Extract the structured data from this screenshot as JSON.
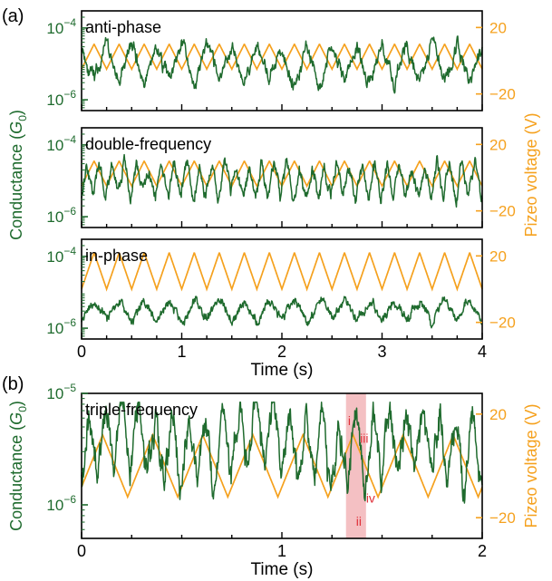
{
  "figure": {
    "panel_labels": [
      "(a)",
      "(b)"
    ],
    "colors": {
      "conductance": "#1f6b2e",
      "voltage": "#f5a11e",
      "highlight": "#f2b5b8",
      "annotation": "#e0303a",
      "axis": "#000000"
    }
  },
  "chart_data": [
    {
      "type": "line",
      "panel": "(a)",
      "title": "anti-phase",
      "xlim": [
        0,
        4
      ],
      "left_axis": {
        "ylabel": "Conductance (G0)",
        "scale": "log",
        "ylim": [
          5e-07,
          0.0003
        ],
        "ticks": [
          "10^-6",
          "10^-4"
        ]
      },
      "right_axis": {
        "ylabel": "Pizeo voltage (V)",
        "ylim": [
          -30,
          30
        ],
        "ticks": [
          "-20",
          "20"
        ]
      },
      "voltage_wave": {
        "shape": "triangle",
        "period_s": 0.25,
        "vmin": -5,
        "vmax": 10,
        "phase": 0
      },
      "conductance_wave": {
        "pattern": "anti-phase",
        "log_base": -5.0,
        "log_amplitude": 0.55,
        "seed": 11
      }
    },
    {
      "type": "line",
      "title": "double-frequency",
      "xlim": [
        0,
        4
      ],
      "left_axis": {
        "ylabel": "",
        "scale": "log",
        "ylim": [
          5e-07,
          0.0003
        ],
        "ticks": [
          "10^-6",
          "10^-4"
        ]
      },
      "right_axis": {
        "ylabel": "",
        "ylim": [
          -30,
          30
        ],
        "ticks": [
          "-20",
          "20"
        ]
      },
      "voltage_wave": {
        "shape": "triangle",
        "period_s": 0.25,
        "vmin": -5,
        "vmax": 10,
        "phase": 0
      },
      "conductance_wave": {
        "pattern": "double-frequency",
        "log_base": -5.0,
        "log_amplitude": 0.5,
        "seed": 23
      }
    },
    {
      "type": "line",
      "title": "in-phase",
      "xlabel": "Time (s)",
      "xlim": [
        0,
        4
      ],
      "xticks": [
        "0",
        "1",
        "2",
        "3",
        "4"
      ],
      "left_axis": {
        "ylabel": "",
        "scale": "log",
        "ylim": [
          5e-07,
          0.0003
        ],
        "ticks": [
          "10^-6",
          "10^-4"
        ]
      },
      "right_axis": {
        "ylabel": "",
        "ylim": [
          -30,
          30
        ],
        "ticks": [
          "-20",
          "20"
        ]
      },
      "voltage_wave": {
        "shape": "triangle",
        "period_s": 0.25,
        "vmin": 0,
        "vmax": 22,
        "phase": 0
      },
      "conductance_wave": {
        "pattern": "in-phase",
        "log_base": -5.5,
        "log_amplitude": 0.3,
        "seed": 37
      }
    },
    {
      "type": "line",
      "panel": "(b)",
      "title": "triple-frequency",
      "xlabel": "Time (s)",
      "xlim": [
        0,
        2
      ],
      "xticks": [
        "0",
        "1",
        "2"
      ],
      "left_axis": {
        "ylabel": "Conductance (G0)",
        "scale": "log",
        "ylim": [
          5e-07,
          1e-05
        ],
        "ticks": [
          "10^-6",
          "10^-5"
        ]
      },
      "right_axis": {
        "ylabel": "Pizeo voltage (V)",
        "ylim": [
          -28,
          28
        ],
        "ticks": [
          "-20",
          "20"
        ]
      },
      "voltage_wave": {
        "shape": "triangle",
        "period_s": 0.25,
        "vmin": -12,
        "vmax": 12,
        "phase": 0.08
      },
      "conductance_wave": {
        "pattern": "triple-frequency",
        "log_base": -5.45,
        "log_amplitude": 0.35,
        "seed": 53
      },
      "highlight_range": [
        1.32,
        1.42
      ],
      "annotations": [
        {
          "text": "i",
          "x": 1.33,
          "y": 5.2e-06
        },
        {
          "text": "ii",
          "x": 1.37,
          "y": 6.5e-07
        },
        {
          "text": "iii",
          "x": 1.39,
          "y": 3.6e-06
        },
        {
          "text": "iv",
          "x": 1.42,
          "y": 1.05e-06
        }
      ]
    }
  ]
}
